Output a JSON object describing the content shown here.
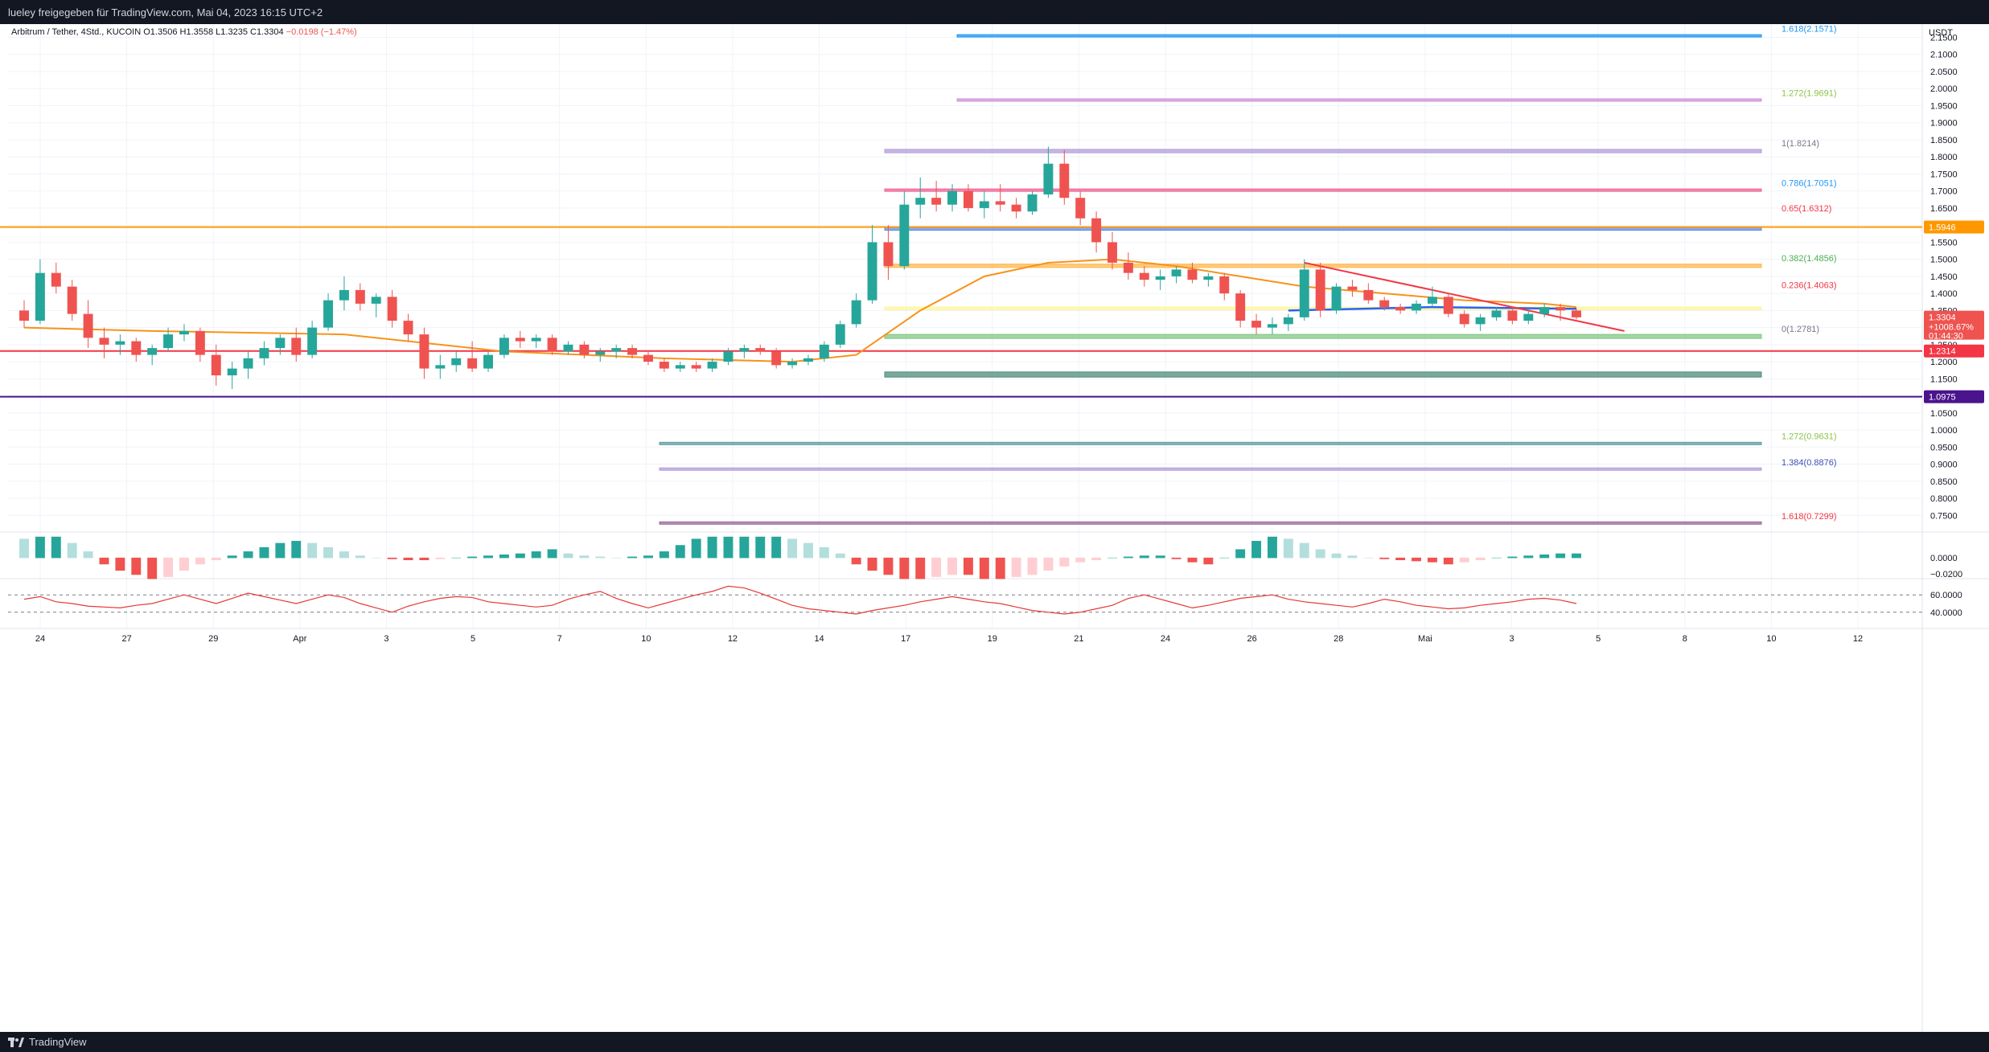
{
  "header": {
    "attribution": "lueley freigegeben für TradingView.com, Mai 04, 2023 16:15 UTC+2"
  },
  "legend": {
    "symbol": "Arbitrum / Tether, 4Std., KUCOIN",
    "open": "O1.3506",
    "high": "H1.3558",
    "low": "L1.3235",
    "close": "C1.3304",
    "change": "−0.0198 (−1.47%)"
  },
  "footer": {
    "brand": "TradingView"
  },
  "chart_data": {
    "type": "candlestick",
    "currency": "USDT",
    "ylim": [
      0.72,
      2.17
    ],
    "y_ticks": [
      2.15,
      2.1,
      2.05,
      2.0,
      1.95,
      1.9,
      1.85,
      1.8,
      1.75,
      1.7,
      1.65,
      1.6,
      1.55,
      1.5,
      1.45,
      1.4,
      1.35,
      1.3,
      1.25,
      1.2,
      1.15,
      1.1,
      1.05,
      1.0,
      0.95,
      0.9,
      0.85,
      0.8,
      0.75
    ],
    "x_ticks": [
      "24",
      "27",
      "29",
      "Apr",
      "3",
      "5",
      "7",
      "10",
      "12",
      "14",
      "17",
      "19",
      "21",
      "24",
      "26",
      "28",
      "Mai",
      "3",
      "5",
      "8",
      "10",
      "12"
    ],
    "colors": {
      "up": "#26a69a",
      "down": "#ef5350",
      "ema": "#f7931a",
      "sma": "#2962ff",
      "resistance": "#f23645",
      "support_line": "#4a148c",
      "orange_level": "#ff9800"
    },
    "price_labels": {
      "last": "1.3304",
      "last_pct": "+1008.67%",
      "countdown": "01:44:30",
      "level_orange": "1.5946",
      "level_red": "1.2314",
      "level_purple": "1.0975"
    },
    "fib_levels": [
      {
        "label": "1.618(2.1571)",
        "value": 2.1571,
        "color": "#2196f3"
      },
      {
        "label": "1.272(1.9691)",
        "value": 1.9691,
        "color": "#8bc34a"
      },
      {
        "label": "1(1.8214)",
        "value": 1.8214,
        "color": "#787b86"
      },
      {
        "label": "0.786(1.7051)",
        "value": 1.7051,
        "color": "#2196f3"
      },
      {
        "label": "0.65(1.6312)",
        "value": 1.6312,
        "color": "#f23645"
      },
      {
        "label": "0.382(1.4856)",
        "value": 1.4856,
        "color": "#4caf50"
      },
      {
        "label": "0.236(1.4063)",
        "value": 1.4063,
        "color": "#f23645"
      },
      {
        "label": "0(1.2781)",
        "value": 1.2781,
        "color": "#787b86"
      },
      {
        "label": "1.272(0.9631)",
        "value": 0.9631,
        "color": "#8bc34a"
      },
      {
        "label": "1.384(0.8876)",
        "value": 0.8876,
        "color": "#3f51b5"
      },
      {
        "label": "1.618(0.7299)",
        "value": 0.7299,
        "color": "#f23645"
      }
    ],
    "zones": [
      {
        "from": 2.153,
        "to": 2.158,
        "color": "#2196f3"
      },
      {
        "from": 1.965,
        "to": 1.97,
        "color": "#ce93d8"
      },
      {
        "from": 1.812,
        "to": 1.822,
        "color": "#b39ddb"
      },
      {
        "from": 1.7,
        "to": 1.706,
        "color": "#f06292"
      },
      {
        "from": 1.585,
        "to": 1.595,
        "color": "#5c8ee6"
      },
      {
        "from": 1.476,
        "to": 1.486,
        "color": "#ffb74d"
      },
      {
        "from": 1.352,
        "to": 1.36,
        "color": "#fff59d"
      },
      {
        "from": 1.268,
        "to": 1.28,
        "color": "#81c784"
      },
      {
        "from": 1.155,
        "to": 1.17,
        "color": "#4e8c7a"
      },
      {
        "from": 0.958,
        "to": 0.964,
        "color": "#5f9ea0"
      },
      {
        "from": 0.884,
        "to": 0.889,
        "color": "#b39ddb"
      },
      {
        "from": 0.726,
        "to": 0.731,
        "color": "#9c6b9e"
      }
    ],
    "horizontal_lines": [
      1.5946,
      1.2314,
      1.0975
    ],
    "candles": [
      [
        1.35,
        1.38,
        1.3,
        1.32
      ],
      [
        1.32,
        1.5,
        1.31,
        1.46
      ],
      [
        1.46,
        1.49,
        1.4,
        1.42
      ],
      [
        1.42,
        1.44,
        1.32,
        1.34
      ],
      [
        1.34,
        1.38,
        1.24,
        1.27
      ],
      [
        1.27,
        1.3,
        1.21,
        1.25
      ],
      [
        1.25,
        1.28,
        1.22,
        1.26
      ],
      [
        1.26,
        1.27,
        1.2,
        1.22
      ],
      [
        1.22,
        1.25,
        1.19,
        1.24
      ],
      [
        1.24,
        1.3,
        1.23,
        1.28
      ],
      [
        1.28,
        1.31,
        1.26,
        1.29
      ],
      [
        1.29,
        1.3,
        1.2,
        1.22
      ],
      [
        1.22,
        1.25,
        1.13,
        1.16
      ],
      [
        1.16,
        1.2,
        1.12,
        1.18
      ],
      [
        1.18,
        1.23,
        1.15,
        1.21
      ],
      [
        1.21,
        1.26,
        1.19,
        1.24
      ],
      [
        1.24,
        1.28,
        1.22,
        1.27
      ],
      [
        1.27,
        1.3,
        1.2,
        1.22
      ],
      [
        1.22,
        1.32,
        1.21,
        1.3
      ],
      [
        1.3,
        1.4,
        1.29,
        1.38
      ],
      [
        1.38,
        1.45,
        1.35,
        1.41
      ],
      [
        1.41,
        1.43,
        1.35,
        1.37
      ],
      [
        1.37,
        1.4,
        1.33,
        1.39
      ],
      [
        1.39,
        1.41,
        1.3,
        1.32
      ],
      [
        1.32,
        1.34,
        1.26,
        1.28
      ],
      [
        1.28,
        1.3,
        1.15,
        1.18
      ],
      [
        1.18,
        1.22,
        1.15,
        1.19
      ],
      [
        1.19,
        1.23,
        1.17,
        1.21
      ],
      [
        1.21,
        1.26,
        1.17,
        1.18
      ],
      [
        1.18,
        1.23,
        1.17,
        1.22
      ],
      [
        1.22,
        1.28,
        1.21,
        1.27
      ],
      [
        1.27,
        1.29,
        1.24,
        1.26
      ],
      [
        1.26,
        1.28,
        1.24,
        1.27
      ],
      [
        1.27,
        1.28,
        1.22,
        1.23
      ],
      [
        1.23,
        1.26,
        1.22,
        1.25
      ],
      [
        1.25,
        1.26,
        1.21,
        1.22
      ],
      [
        1.22,
        1.24,
        1.2,
        1.23
      ],
      [
        1.23,
        1.25,
        1.21,
        1.24
      ],
      [
        1.24,
        1.25,
        1.21,
        1.22
      ],
      [
        1.22,
        1.23,
        1.19,
        1.2
      ],
      [
        1.2,
        1.21,
        1.17,
        1.18
      ],
      [
        1.18,
        1.2,
        1.17,
        1.19
      ],
      [
        1.19,
        1.2,
        1.17,
        1.18
      ],
      [
        1.18,
        1.21,
        1.17,
        1.2
      ],
      [
        1.2,
        1.24,
        1.19,
        1.23
      ],
      [
        1.23,
        1.25,
        1.21,
        1.24
      ],
      [
        1.24,
        1.25,
        1.22,
        1.23
      ],
      [
        1.23,
        1.24,
        1.18,
        1.19
      ],
      [
        1.19,
        1.21,
        1.18,
        1.2
      ],
      [
        1.2,
        1.22,
        1.19,
        1.21
      ],
      [
        1.21,
        1.26,
        1.2,
        1.25
      ],
      [
        1.25,
        1.32,
        1.24,
        1.31
      ],
      [
        1.31,
        1.4,
        1.3,
        1.38
      ],
      [
        1.38,
        1.6,
        1.37,
        1.55
      ],
      [
        1.55,
        1.6,
        1.44,
        1.48
      ],
      [
        1.48,
        1.7,
        1.47,
        1.66
      ],
      [
        1.66,
        1.74,
        1.62,
        1.68
      ],
      [
        1.68,
        1.73,
        1.64,
        1.66
      ],
      [
        1.66,
        1.72,
        1.64,
        1.7
      ],
      [
        1.7,
        1.72,
        1.64,
        1.65
      ],
      [
        1.65,
        1.7,
        1.62,
        1.67
      ],
      [
        1.67,
        1.72,
        1.64,
        1.66
      ],
      [
        1.66,
        1.68,
        1.62,
        1.64
      ],
      [
        1.64,
        1.7,
        1.63,
        1.69
      ],
      [
        1.69,
        1.83,
        1.68,
        1.78
      ],
      [
        1.78,
        1.82,
        1.66,
        1.68
      ],
      [
        1.68,
        1.7,
        1.6,
        1.62
      ],
      [
        1.62,
        1.64,
        1.52,
        1.55
      ],
      [
        1.55,
        1.58,
        1.47,
        1.49
      ],
      [
        1.49,
        1.52,
        1.44,
        1.46
      ],
      [
        1.46,
        1.48,
        1.42,
        1.44
      ],
      [
        1.44,
        1.47,
        1.41,
        1.45
      ],
      [
        1.45,
        1.48,
        1.43,
        1.47
      ],
      [
        1.47,
        1.49,
        1.43,
        1.44
      ],
      [
        1.44,
        1.46,
        1.42,
        1.45
      ],
      [
        1.45,
        1.46,
        1.38,
        1.4
      ],
      [
        1.4,
        1.41,
        1.3,
        1.32
      ],
      [
        1.32,
        1.34,
        1.28,
        1.3
      ],
      [
        1.3,
        1.33,
        1.28,
        1.31
      ],
      [
        1.31,
        1.34,
        1.29,
        1.33
      ],
      [
        1.33,
        1.5,
        1.32,
        1.47
      ],
      [
        1.47,
        1.49,
        1.33,
        1.35
      ],
      [
        1.35,
        1.43,
        1.34,
        1.42
      ],
      [
        1.42,
        1.44,
        1.39,
        1.41
      ],
      [
        1.41,
        1.43,
        1.37,
        1.38
      ],
      [
        1.38,
        1.39,
        1.35,
        1.36
      ],
      [
        1.36,
        1.37,
        1.34,
        1.35
      ],
      [
        1.35,
        1.38,
        1.34,
        1.37
      ],
      [
        1.37,
        1.42,
        1.36,
        1.39
      ],
      [
        1.39,
        1.4,
        1.33,
        1.34
      ],
      [
        1.34,
        1.35,
        1.3,
        1.31
      ],
      [
        1.31,
        1.34,
        1.29,
        1.33
      ],
      [
        1.33,
        1.36,
        1.32,
        1.35
      ],
      [
        1.35,
        1.36,
        1.31,
        1.32
      ],
      [
        1.32,
        1.35,
        1.31,
        1.34
      ],
      [
        1.34,
        1.37,
        1.33,
        1.36
      ],
      [
        1.36,
        1.37,
        1.32,
        1.35
      ],
      [
        1.35,
        1.356,
        1.324,
        1.33
      ]
    ],
    "ema_line": [
      [
        0,
        1.3
      ],
      [
        8,
        1.29
      ],
      [
        20,
        1.28
      ],
      [
        30,
        1.23
      ],
      [
        40,
        1.21
      ],
      [
        48,
        1.2
      ],
      [
        52,
        1.22
      ],
      [
        56,
        1.35
      ],
      [
        60,
        1.45
      ],
      [
        64,
        1.49
      ],
      [
        68,
        1.5
      ],
      [
        72,
        1.48
      ],
      [
        76,
        1.45
      ],
      [
        80,
        1.42
      ],
      [
        85,
        1.4
      ],
      [
        90,
        1.38
      ],
      [
        95,
        1.37
      ],
      [
        97,
        1.36
      ]
    ],
    "sma_line": [
      [
        79,
        1.35
      ],
      [
        88,
        1.36
      ],
      [
        97,
        1.355
      ]
    ],
    "resistance_line": [
      [
        80,
        1.49
      ],
      [
        100,
        1.29
      ]
    ],
    "macd_histogram": [
      0.9,
      1.0,
      1.0,
      0.7,
      0.3,
      -0.3,
      -0.6,
      -0.8,
      -1.0,
      -0.9,
      -0.6,
      -0.3,
      -0.1,
      0.1,
      0.3,
      0.5,
      0.7,
      0.8,
      0.7,
      0.5,
      0.3,
      0.1,
      0.0,
      -0.05,
      -0.1,
      -0.1,
      -0.05,
      0.0,
      0.05,
      0.1,
      0.15,
      0.2,
      0.3,
      0.4,
      0.2,
      0.1,
      0.05,
      0.0,
      0.05,
      0.1,
      0.3,
      0.6,
      0.9,
      1.0,
      1.0,
      1.0,
      1.0,
      1.0,
      0.9,
      0.7,
      0.5,
      0.2,
      -0.3,
      -0.6,
      -0.8,
      -1.0,
      -1.0,
      -0.9,
      -0.8,
      -0.8,
      -1.0,
      -1.0,
      -0.9,
      -0.8,
      -0.6,
      -0.4,
      -0.2,
      -0.1,
      0.0,
      0.05,
      0.1,
      0.1,
      -0.05,
      -0.2,
      -0.3,
      0.0,
      0.4,
      0.8,
      1.0,
      0.9,
      0.7,
      0.4,
      0.2,
      0.1,
      0.0,
      -0.05,
      -0.1,
      -0.15,
      -0.2,
      -0.3,
      -0.2,
      -0.1,
      0.0,
      0.05,
      0.1,
      0.15,
      0.2,
      0.2
    ],
    "rsi_line": [
      55,
      58,
      52,
      50,
      47,
      46,
      45,
      48,
      50,
      55,
      60,
      55,
      50,
      56,
      62,
      58,
      54,
      50,
      55,
      60,
      57,
      50,
      45,
      40,
      47,
      52,
      56,
      58,
      57,
      52,
      50,
      48,
      46,
      48,
      55,
      60,
      64,
      56,
      50,
      45,
      50,
      55,
      60,
      64,
      70,
      68,
      62,
      55,
      48,
      44,
      42,
      40,
      38,
      42,
      45,
      48,
      52,
      55,
      58,
      55,
      52,
      50,
      46,
      42,
      40,
      38,
      40,
      44,
      48,
      56,
      60,
      55,
      50,
      45,
      48,
      52,
      56,
      58,
      60,
      55,
      52,
      50,
      48,
      46,
      50,
      55,
      52,
      48,
      46,
      44,
      45,
      48,
      50,
      52,
      55,
      56,
      54,
      50
    ],
    "rsi_levels": [
      60.0,
      40.0
    ],
    "macd_ticks": [
      "0.0000",
      "−0.0200"
    ],
    "rsi_ticks": [
      "60.0000",
      "40.0000"
    ]
  }
}
